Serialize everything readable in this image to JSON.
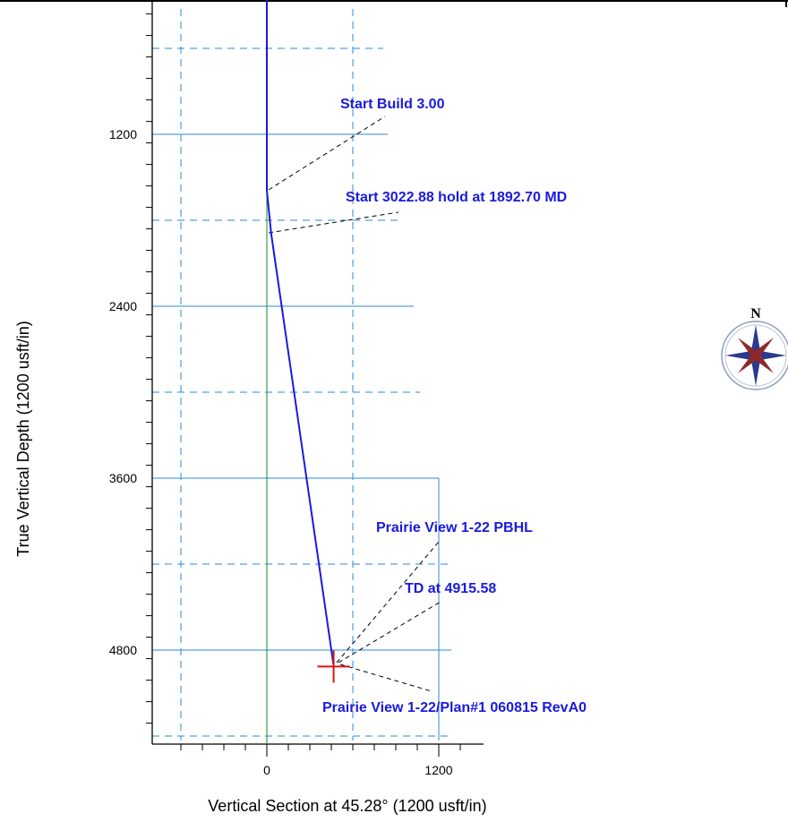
{
  "chart_data": {
    "type": "line",
    "xlabel": "Vertical Section at 45.28° (1200 usft/in)",
    "ylabel": "True Vertical Depth (1200 usft/in)",
    "xlim": [
      -720,
      1440
    ],
    "ylim": [
      -960,
      5640
    ],
    "x_ticks": [
      0,
      1200
    ],
    "y_ticks": [
      1200,
      2400,
      3600,
      4800
    ],
    "grid": true,
    "series": [
      {
        "x": [
          0,
          0,
          0,
          30,
          466
        ],
        "y": [
          -960,
          0,
          1592,
          1892,
          4910
        ],
        "color": "#1a1adc"
      }
    ],
    "vertical_reference_color": "#1a8a1a",
    "target_marker": {
      "x": 466,
      "y": 4915,
      "color": "#dd1111"
    },
    "annotations": [
      {
        "text": "Start Build 3.00",
        "x": 600,
        "y": 780
      },
      {
        "text": "Start 3022.88 hold at 1892.70 MD",
        "x": 600,
        "y": 1430
      },
      {
        "text": "Prairie View 1-22 PBHL",
        "x": 760,
        "y": 3930
      },
      {
        "text": "TD at 4915.58",
        "x": 960,
        "y": 4260
      },
      {
        "text": "Prairie View 1-22/Plan#1 060815 RevA0",
        "x": 380,
        "y": 5360
      }
    ],
    "compass_label": "N"
  }
}
